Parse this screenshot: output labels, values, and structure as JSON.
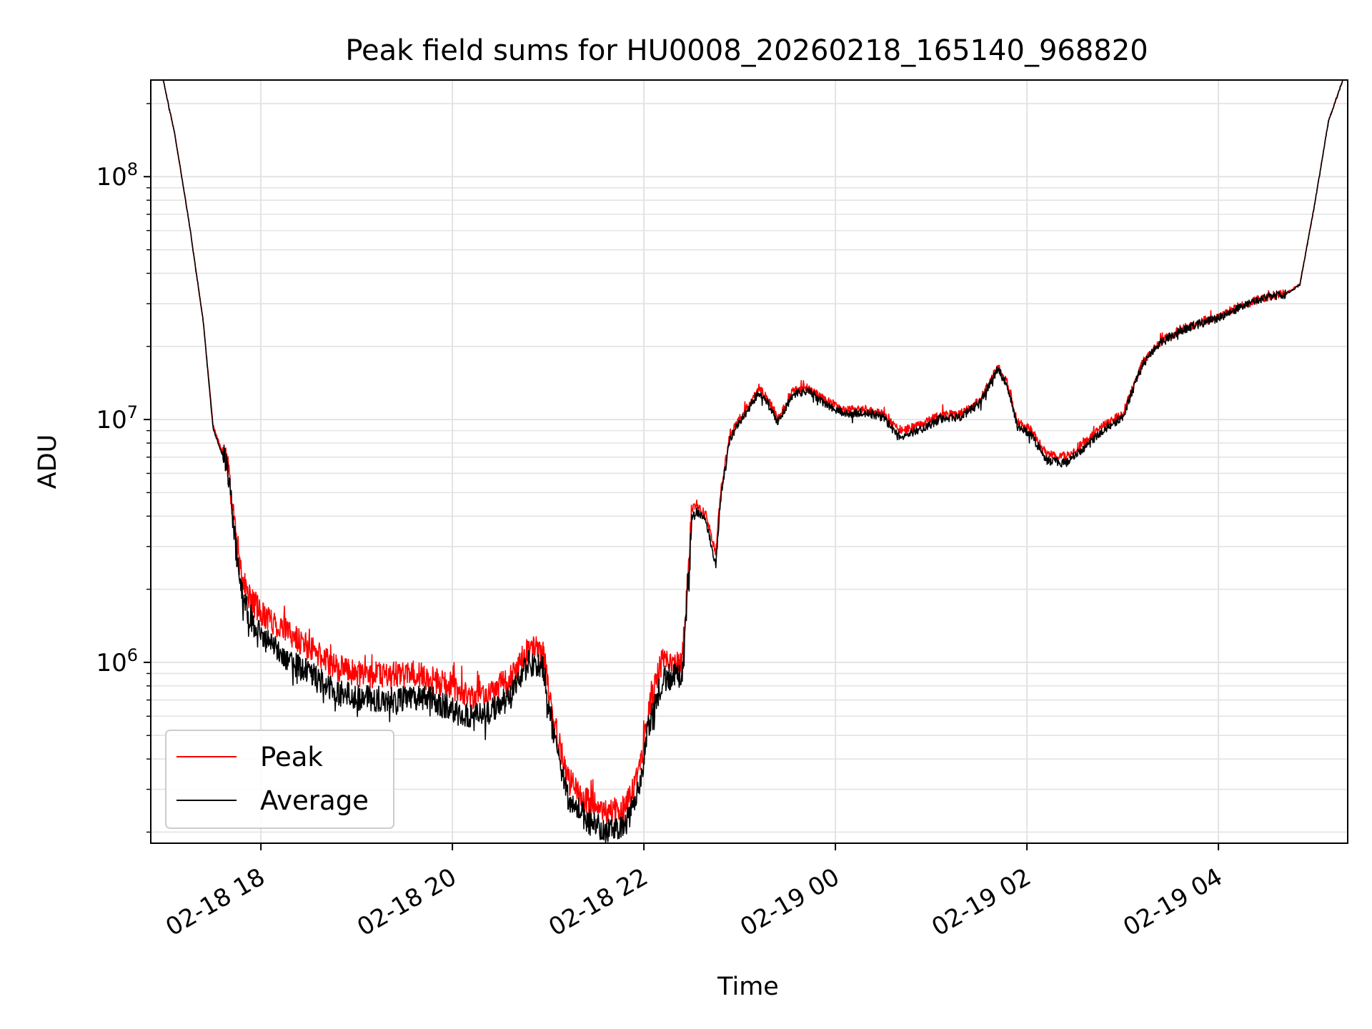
{
  "chart_data": {
    "type": "line",
    "title": "Peak field sums for HU0008_20260218_165140_968820",
    "xlabel": "Time",
    "ylabel": "ADU",
    "yscale": "log",
    "ylim": [
      180000,
      250000000
    ],
    "xlim_hours": [
      16.85,
      29.35
    ],
    "grid": true,
    "legend_position": "lower-left",
    "x_ticks": [
      {
        "hour": 18,
        "label": "02-18 18"
      },
      {
        "hour": 20,
        "label": "02-18 20"
      },
      {
        "hour": 22,
        "label": "02-18 22"
      },
      {
        "hour": 24,
        "label": "02-19 00"
      },
      {
        "hour": 26,
        "label": "02-19 02"
      },
      {
        "hour": 28,
        "label": "02-19 04"
      }
    ],
    "y_ticks": [
      {
        "exp": 6,
        "base": "10",
        "sup": "6"
      },
      {
        "exp": 7,
        "base": "10",
        "sup": "7"
      },
      {
        "exp": 8,
        "base": "10",
        "sup": "8"
      }
    ],
    "x_hours": [
      16.98,
      17.1,
      17.25,
      17.4,
      17.5,
      17.6,
      17.65,
      17.75,
      17.8,
      17.9,
      18.0,
      18.2,
      18.5,
      18.8,
      19.0,
      19.3,
      19.6,
      19.8,
      20.0,
      20.2,
      20.4,
      20.6,
      20.8,
      20.95,
      21.05,
      21.2,
      21.4,
      21.6,
      21.8,
      21.95,
      22.05,
      22.2,
      22.4,
      22.5,
      22.55,
      22.65,
      22.75,
      22.8,
      22.9,
      23.0,
      23.1,
      23.2,
      23.3,
      23.4,
      23.55,
      23.7,
      23.9,
      24.1,
      24.3,
      24.5,
      24.6,
      24.7,
      24.9,
      25.1,
      25.3,
      25.5,
      25.7,
      25.8,
      25.9,
      26.05,
      26.2,
      26.4,
      26.6,
      26.8,
      27.0,
      27.2,
      27.4,
      27.6,
      27.8,
      28.0,
      28.2,
      28.5,
      28.7,
      28.85,
      29.0,
      29.15,
      29.3
    ],
    "series": [
      {
        "name": "Peak",
        "color": "#ff0000",
        "values": [
          250000000,
          150000000,
          65000000,
          25000000,
          9500000,
          7300000,
          6600000,
          3000000,
          2200000,
          1800000,
          1600000,
          1400000,
          1150000,
          950000,
          900000,
          880000,
          900000,
          850000,
          780000,
          720000,
          760000,
          850000,
          1150000,
          1100000,
          600000,
          330000,
          270000,
          240000,
          250000,
          350000,
          650000,
          1050000,
          1000000,
          4200000,
          4500000,
          4000000,
          2800000,
          5000000,
          8800000,
          10000000,
          11500000,
          13500000,
          12000000,
          10000000,
          13000000,
          13500000,
          12000000,
          11000000,
          11000000,
          10500000,
          9500000,
          9000000,
          9500000,
          10500000,
          10500000,
          12000000,
          16500000,
          14000000,
          9800000,
          9000000,
          7200000,
          7000000,
          8000000,
          9500000,
          10500000,
          17000000,
          21000000,
          23500000,
          25000000,
          26500000,
          29000000,
          32000000,
          33000000,
          36000000,
          75000000,
          170000000,
          250000000
        ]
      },
      {
        "name": "Average",
        "color": "#000000",
        "values": [
          250000000,
          150000000,
          65000000,
          25000000,
          9200000,
          7100000,
          6400000,
          2700000,
          1900000,
          1500000,
          1300000,
          1100000,
          900000,
          750000,
          720000,
          700000,
          720000,
          700000,
          640000,
          590000,
          620000,
          720000,
          1000000,
          950000,
          520000,
          280000,
          225000,
          200000,
          210000,
          300000,
          560000,
          860000,
          880000,
          3900000,
          4200000,
          3800000,
          2500000,
          4700000,
          8400000,
          9700000,
          11200000,
          13000000,
          11600000,
          9700000,
          12600000,
          13200000,
          11600000,
          10600000,
          10700000,
          10200000,
          9100000,
          8600000,
          9100000,
          10100000,
          10200000,
          11600000,
          16200000,
          13600000,
          9400000,
          8600000,
          6800000,
          6600000,
          7600000,
          9100000,
          10200000,
          16700000,
          20700000,
          23200000,
          24700000,
          26200000,
          28700000,
          31800000,
          32800000,
          35800000,
          75000000,
          170000000,
          250000000
        ]
      }
    ]
  }
}
